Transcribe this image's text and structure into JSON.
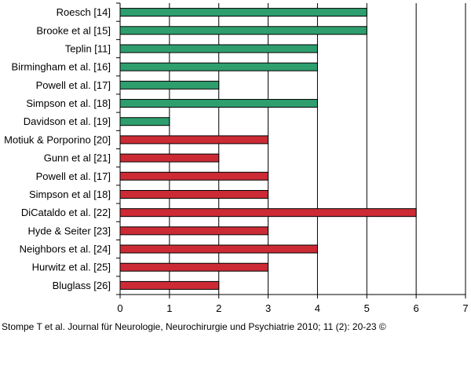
{
  "caption": "Stompe T et al. Journal für Neurologie, Neurochirurgie und Psychiatrie 2010; 11 (2): 20-23 ©",
  "colors": {
    "green": "#2e9e6e",
    "red": "#cc2b35",
    "bar_stroke": "#000000",
    "grid": "#000000"
  },
  "chart_data": {
    "type": "bar",
    "orientation": "horizontal",
    "title": "",
    "xlabel": "",
    "ylabel": "",
    "xlim": [
      0,
      7
    ],
    "xticks": [
      0,
      1,
      2,
      3,
      4,
      5,
      6,
      7
    ],
    "grid": "vertical",
    "legend": "none",
    "categories": [
      "Roesch [14]",
      "Brooke et al [15]",
      "Teplin [11]",
      "Birmingham et al. [16]",
      "Powell et al. [17]",
      "Simpson et al. [18]",
      "Davidson et al. [19]",
      "Motiuk & Porporino [20]",
      "Gunn et al [21]",
      "Powell et al. [17]",
      "Simpson et al [18]",
      "DiCataldo et al. [22]",
      "Hyde & Seiter [23]",
      "Neighbors et al. [24]",
      "Hurwitz et al. [25]",
      "Bluglass [26]"
    ],
    "values": [
      5,
      5,
      4,
      4,
      2,
      4,
      1,
      3,
      2,
      3,
      3,
      6,
      3,
      4,
      3,
      2
    ],
    "bar_colors": [
      "green",
      "green",
      "green",
      "green",
      "green",
      "green",
      "green",
      "red",
      "red",
      "red",
      "red",
      "red",
      "red",
      "red",
      "red",
      "red"
    ]
  }
}
